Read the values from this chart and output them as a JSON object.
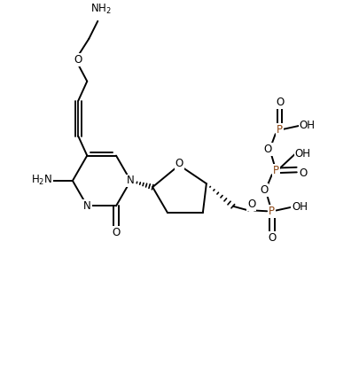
{
  "background_color": "#ffffff",
  "line_color": "#000000",
  "phosphorus_color": "#8B4513",
  "figsize": [
    4.05,
    4.13
  ],
  "dpi": 100,
  "xlim": [
    0,
    10
  ],
  "ylim": [
    0,
    10.2
  ]
}
